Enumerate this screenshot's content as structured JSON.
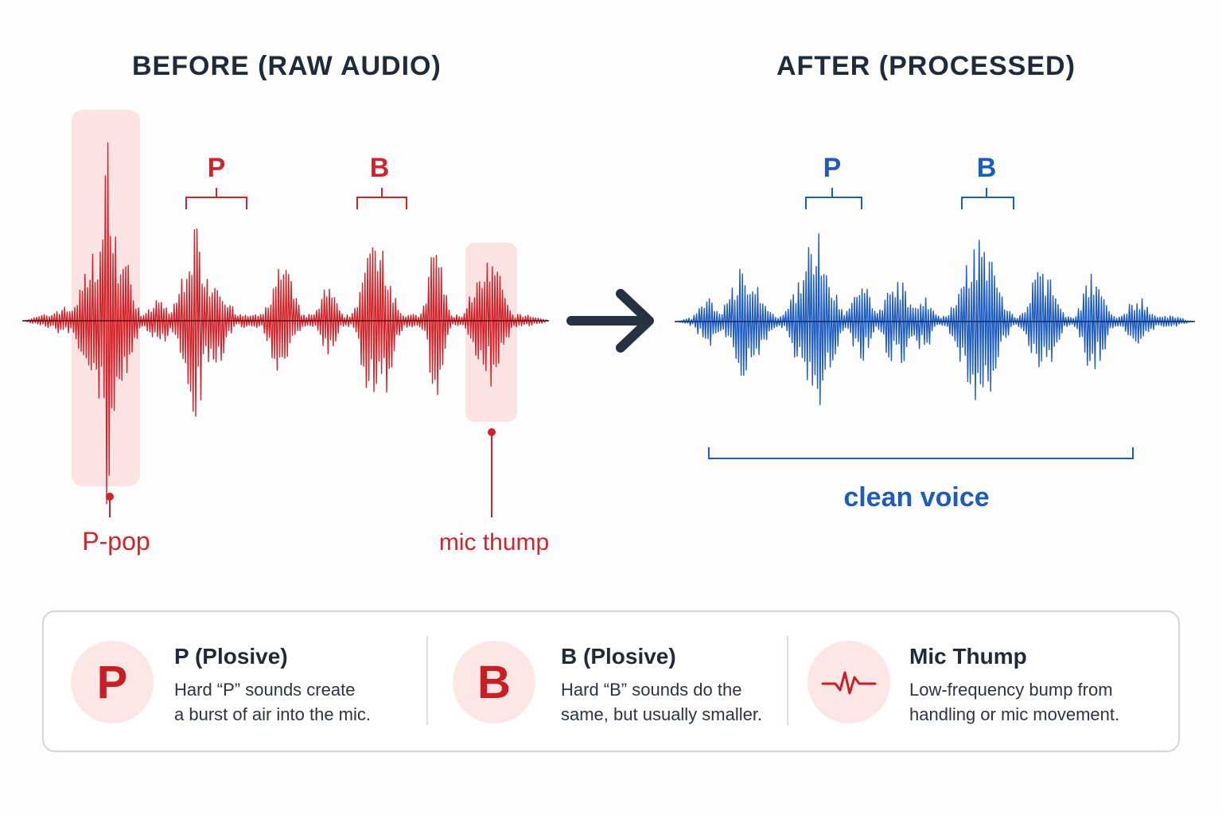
{
  "before": {
    "title": "BEFORE (RAW AUDIO)",
    "markers": [
      "P",
      "B"
    ],
    "callouts": {
      "p_pop": "P-pop",
      "mic_thump": "mic thump"
    },
    "color": "#d3232a",
    "highlight_color": "#fbe3e3"
  },
  "after": {
    "title": "AFTER (PROCESSED)",
    "markers": [
      "P",
      "B"
    ],
    "caption": "clean voice",
    "color": "#1d5bbf"
  },
  "arrow": {
    "icon": "right-arrow-icon",
    "color": "#263241"
  },
  "legend": {
    "items": [
      {
        "icon": "P",
        "title": "P (Plosive)",
        "description": "Hard “P” sounds create\na burst of air into the mic."
      },
      {
        "icon": "B",
        "title": "B (Plosive)",
        "description": "Hard “B” sounds do the\nsame, but usually smaller."
      },
      {
        "icon": "pulse-wave-icon",
        "title": "Mic Thump",
        "description": "Low-frequency bump from\nhandling or mic movement."
      }
    ]
  }
}
